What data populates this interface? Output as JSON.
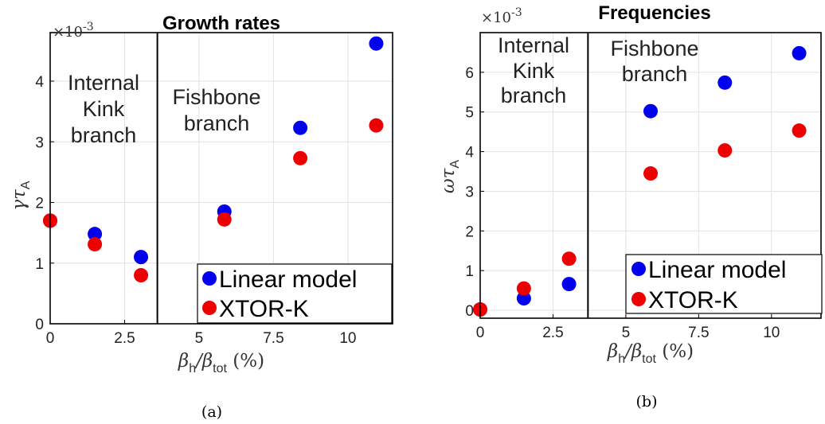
{
  "chart_data": [
    {
      "type": "scatter",
      "title": "Growth rates",
      "xlabel": "β_h/β_tot (%)",
      "ylabel": "γτ_A",
      "y_exponent_label": "×10^-3",
      "x_ticks": [
        "0",
        "2.5",
        "5",
        "7.5",
        "10"
      ],
      "y_ticks": [
        "0",
        "1",
        "2",
        "3",
        "4"
      ],
      "xlim": [
        0,
        11.5
      ],
      "ylim": [
        0,
        4.8
      ],
      "grid": true,
      "legend_position": "bottom-right",
      "region_labels": [
        "Internal Kink branch",
        "Fishbone branch"
      ],
      "divider_x": 3.6,
      "series": [
        {
          "name": "Linear model",
          "color": "#0000ee",
          "x": [
            0,
            1.5,
            3.05,
            5.85,
            8.4,
            10.95
          ],
          "y": [
            1.7,
            1.48,
            1.1,
            1.85,
            3.23,
            4.62
          ]
        },
        {
          "name": "XTOR-K",
          "color": "#ee0000",
          "x": [
            0,
            1.5,
            3.05,
            5.85,
            8.4,
            10.95
          ],
          "y": [
            1.7,
            1.31,
            0.8,
            1.72,
            2.73,
            3.27
          ]
        }
      ],
      "panel_label": "(a)"
    },
    {
      "type": "scatter",
      "title": "Frequencies",
      "xlabel": "β_h/β_tot (%)",
      "ylabel": "ωτ_A",
      "y_exponent_label": "×10^-3",
      "x_ticks": [
        "0",
        "2.5",
        "5",
        "7.5",
        "10"
      ],
      "y_ticks": [
        "0",
        "1",
        "2",
        "3",
        "4",
        "5",
        "6"
      ],
      "xlim": [
        0,
        11.7
      ],
      "ylim": [
        -0.2,
        7.0
      ],
      "grid": true,
      "legend_position": "bottom-right",
      "region_labels": [
        "Internal Kink branch",
        "Fishbone branch"
      ],
      "divider_x": 3.7,
      "series": [
        {
          "name": "Linear model",
          "color": "#0000ee",
          "x": [
            0,
            1.5,
            3.05,
            5.85,
            8.4,
            10.95
          ],
          "y": [
            0.02,
            0.3,
            0.66,
            5.02,
            5.74,
            6.48
          ]
        },
        {
          "name": "XTOR-K",
          "color": "#ee0000",
          "x": [
            0,
            1.5,
            3.05,
            5.85,
            8.4,
            10.95
          ],
          "y": [
            0.02,
            0.55,
            1.3,
            3.45,
            4.03,
            4.53
          ]
        }
      ],
      "panel_label": "(b)"
    }
  ]
}
